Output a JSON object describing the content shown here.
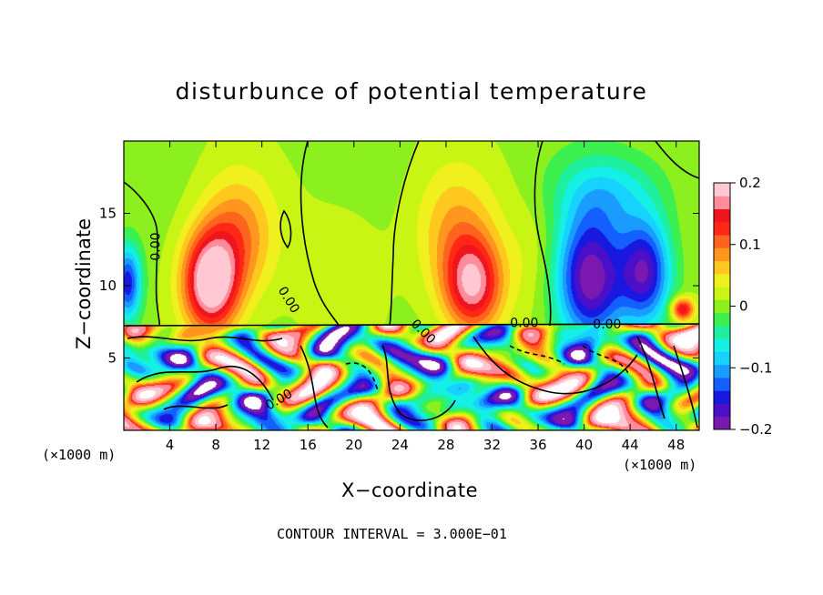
{
  "chart_data": {
    "type": "heatmap",
    "title": "disturbunce of potential temperature",
    "xlabel": "X−coordinate",
    "ylabel": "Z−coordinate",
    "x_unit_left": "(×1000 m)",
    "x_unit_right": "(×1000 m)",
    "annotation": "CONTOUR INTERVAL = 3.000E−01",
    "xlim": [
      0,
      50
    ],
    "ylim": [
      0,
      20
    ],
    "xticks": [
      4,
      8,
      12,
      16,
      20,
      24,
      28,
      32,
      36,
      40,
      44,
      48
    ],
    "yticks": [
      5,
      10,
      15
    ],
    "colorbar": {
      "range": [
        -0.2,
        0.2
      ],
      "ticks": [
        {
          "value": 0.2,
          "label": "0.2"
        },
        {
          "value": 0.1,
          "label": "0.1"
        },
        {
          "value": 0,
          "label": "0"
        },
        {
          "value": -0.1,
          "label": "−0.1"
        },
        {
          "value": -0.2,
          "label": "−0.2"
        }
      ]
    },
    "contour_labels": [
      {
        "x": 2.8,
        "y": 12.7,
        "text": "0.00",
        "rotate": -90
      },
      {
        "x": 14.3,
        "y": 9.0,
        "text": "0.00",
        "rotate": 58
      },
      {
        "x": 26.0,
        "y": 6.8,
        "text": "0.00",
        "rotate": 45
      },
      {
        "x": 34.8,
        "y": 7.4,
        "text": "0.00",
        "rotate": 0
      },
      {
        "x": 42.0,
        "y": 7.3,
        "text": "0.00",
        "rotate": 0
      },
      {
        "x": 13.5,
        "y": 2.1,
        "text": "0.00",
        "rotate": -30
      }
    ],
    "upper_features": [
      {
        "x": 7.5,
        "y": 10.2,
        "sx": 2.4,
        "sy": 3.4,
        "amp": 0.21
      },
      {
        "x": 9.8,
        "y": 13.5,
        "sx": 3.2,
        "sy": 4.2,
        "amp": 0.09
      },
      {
        "x": 30.3,
        "y": 10.0,
        "sx": 2.5,
        "sy": 3.2,
        "amp": 0.16
      },
      {
        "x": 28.8,
        "y": 13.8,
        "sx": 3.5,
        "sy": 4.5,
        "amp": 0.07
      },
      {
        "x": 40.5,
        "y": 10.5,
        "sx": 3.0,
        "sy": 4.5,
        "amp": -0.2
      },
      {
        "x": 45.3,
        "y": 11.0,
        "sx": 2.2,
        "sy": 3.6,
        "amp": -0.17
      },
      {
        "x": 42.0,
        "y": 16.5,
        "sx": 4.5,
        "sy": 2.8,
        "amp": -0.07
      },
      {
        "x": 0.3,
        "y": 10.2,
        "sx": 1.2,
        "sy": 2.6,
        "amp": -0.16
      },
      {
        "x": 19.5,
        "y": 11.0,
        "sx": 4.2,
        "sy": 5.0,
        "amp": 0.015
      },
      {
        "x": 35.5,
        "y": 12.0,
        "sx": 2.2,
        "sy": 4.0,
        "amp": 0.02
      },
      {
        "x": 48.5,
        "y": 8.4,
        "sx": 1.0,
        "sy": 0.8,
        "amp": 0.16
      }
    ]
  }
}
